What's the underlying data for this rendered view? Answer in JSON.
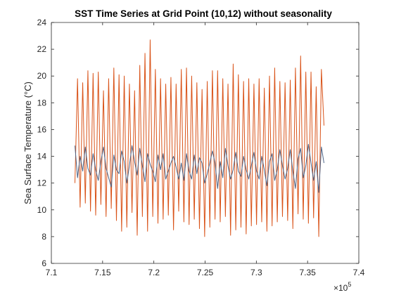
{
  "chart_data": {
    "type": "line",
    "title": "SST Time Series at Grid Point (10,12) without seasonality",
    "xlabel": "",
    "ylabel": "Sea Surface Temperature (°C)",
    "xlim": [
      710000,
      740000
    ],
    "ylim": [
      6,
      24
    ],
    "x_ticks": [
      710000,
      715000,
      720000,
      725000,
      730000,
      735000,
      740000
    ],
    "x_tick_labels": [
      "7.1",
      "7.15",
      "7.2",
      "7.25",
      "7.3",
      "7.35",
      "7.4"
    ],
    "x_exponent_base": "×10",
    "x_exponent_power": "5",
    "y_ticks": [
      6,
      8,
      10,
      12,
      14,
      16,
      18,
      20,
      22,
      24
    ],
    "y_tick_labels": [
      "6",
      "8",
      "10",
      "12",
      "14",
      "16",
      "18",
      "20",
      "22",
      "24"
    ],
    "grid": false,
    "x_start": 712300,
    "x_end": 736600,
    "series": [
      {
        "color": "#d95319",
        "values": [
          12,
          19.8,
          10.2,
          19.5,
          10.5,
          20.4,
          9.9,
          20.2,
          9.6,
          20.3,
          10.4,
          18.9,
          9.5,
          19.8,
          10.1,
          20.6,
          9.2,
          20.1,
          8.4,
          20.0,
          8.7,
          19.4,
          9.8,
          18.9,
          8.1,
          20.8,
          9.5,
          21.7,
          8.4,
          22.7,
          9.5,
          20.5,
          9.0,
          19.8,
          9.3,
          19.4,
          9.6,
          19.9,
          8.5,
          19.4,
          9.9,
          20.5,
          9.1,
          20.6,
          8.9,
          20.0,
          9.3,
          19.5,
          8.6,
          19.0,
          8.0,
          19.6,
          8.7,
          20.4,
          9.3,
          20.4,
          9.1,
          19.8,
          9.5,
          19.4,
          8.1,
          20.9,
          8.5,
          20.1,
          8.7,
          19.6,
          8.2,
          19.8,
          8.8,
          19.4,
          8.9,
          19.8,
          9.1,
          19.1,
          8.4,
          20.0,
          8.8,
          20.6,
          9.1,
          19.6,
          9.5,
          19.5,
          9.2,
          19.7,
          8.6,
          20.6,
          9.7,
          21.5,
          9.3,
          20.3,
          9.0,
          20.3,
          9.4,
          19.2,
          8.0,
          20.5,
          16.3
        ]
      },
      {
        "color": "#4a6387",
        "values": [
          14.8,
          12.4,
          14.0,
          12.9,
          14.7,
          13.1,
          12.6,
          14.2,
          13.0,
          12.2,
          13.6,
          14.7,
          13.1,
          12.4,
          11.7,
          14.1,
          13.0,
          12.7,
          14.4,
          13.6,
          12.0,
          13.3,
          14.8,
          13.6,
          12.6,
          14.6,
          13.3,
          12.1,
          14.2,
          13.4,
          12.9,
          12.1,
          14.1,
          13.0,
          14.2,
          12.3,
          12.9,
          13.5,
          14.0,
          13.2,
          12.3,
          13.5,
          12.2,
          14.2,
          12.9,
          12.3,
          14.1,
          12.7,
          13.9,
          13.5,
          12.0,
          12.7,
          13.5,
          14.4,
          13.5,
          11.6,
          13.6,
          12.4,
          14.6,
          13.3,
          12.3,
          13.0,
          14.3,
          12.9,
          12.5,
          14.0,
          13.0,
          12.3,
          13.3,
          14.3,
          12.9,
          12.3,
          14.0,
          13.0,
          11.8,
          13.6,
          14.2,
          12.2,
          13.0,
          14.5,
          13.3,
          12.3,
          13.1,
          14.5,
          12.9,
          11.6,
          13.8,
          14.6,
          12.4,
          13.3,
          14.9,
          13.5,
          12.2,
          13.6,
          11.3,
          14.7,
          13.5
        ]
      }
    ]
  }
}
